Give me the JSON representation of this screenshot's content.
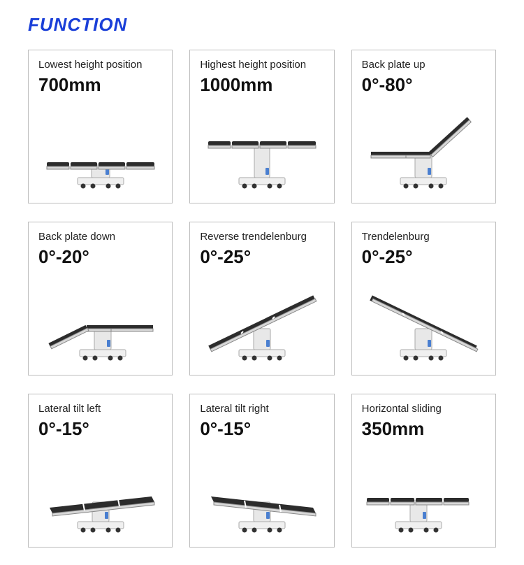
{
  "title": "FUNCTION",
  "cards": [
    {
      "label": "Lowest height position",
      "value": "700mm",
      "variant": "low"
    },
    {
      "label": "Highest height position",
      "value": "1000mm",
      "variant": "high"
    },
    {
      "label": "Back plate up",
      "value": "0°-80°",
      "variant": "backup"
    },
    {
      "label": "Back plate down",
      "value": "0°-20°",
      "variant": "backdown"
    },
    {
      "label": "Reverse trendelenburg",
      "value": "0°-25°",
      "variant": "revtrend"
    },
    {
      "label": "Trendelenburg",
      "value": "0°-25°",
      "variant": "trend"
    },
    {
      "label": "Lateral tilt left",
      "value": "0°-15°",
      "variant": "latleft"
    },
    {
      "label": "Lateral tilt right",
      "value": "0°-15°",
      "variant": "latright"
    },
    {
      "label": "Horizontal sliding",
      "value": "350mm",
      "variant": "slide"
    }
  ],
  "colors": {
    "title": "#1a3fd8",
    "border": "#bdbdbd",
    "text": "#222222",
    "value": "#111111",
    "top_dark": "#2c2c2c",
    "metal": "#e8e8e8"
  }
}
